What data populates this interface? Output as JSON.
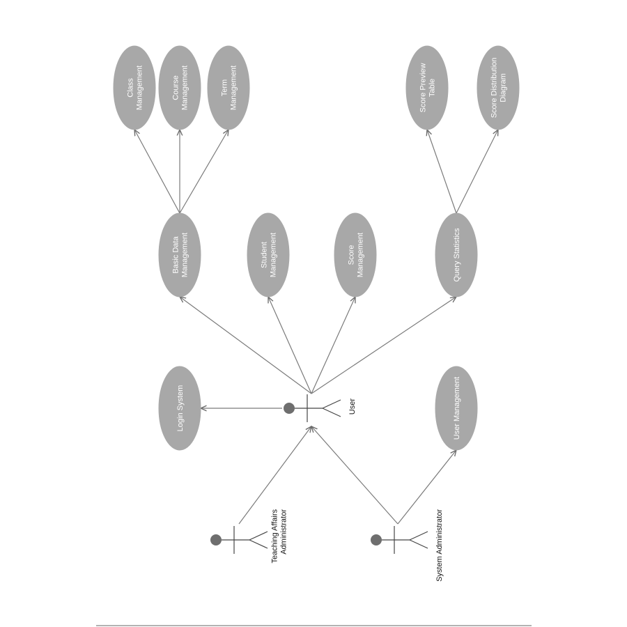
{
  "use_cases": {
    "class_management": [
      "Class",
      "Management"
    ],
    "course_management": [
      "Course",
      "Management"
    ],
    "term_management": [
      "Term",
      "Management"
    ],
    "score_preview_table": [
      "Score Preview",
      "Table"
    ],
    "score_distribution_diagram": [
      "Score Distribution",
      "Diagram"
    ],
    "basic_data_management": [
      "Basic Data",
      "Management"
    ],
    "student_management": [
      "Student",
      "Management"
    ],
    "score_management": [
      "Score",
      "Management"
    ],
    "query_statistics": [
      "Query Statistics"
    ],
    "login_system": [
      "Login System"
    ],
    "user_management": [
      "User Management"
    ]
  },
  "actors": {
    "user": [
      "User"
    ],
    "teaching_affairs_administrator": [
      "Teaching Affairs",
      "Administrator"
    ],
    "system_administrator": [
      "System Administrator"
    ]
  },
  "edges": [
    [
      "basic_data_management",
      "class_management"
    ],
    [
      "basic_data_management",
      "course_management"
    ],
    [
      "basic_data_management",
      "term_management"
    ],
    [
      "query_statistics",
      "score_preview_table"
    ],
    [
      "query_statistics",
      "score_distribution_diagram"
    ],
    [
      "user",
      "basic_data_management"
    ],
    [
      "user",
      "student_management"
    ],
    [
      "user",
      "score_management"
    ],
    [
      "user",
      "query_statistics"
    ],
    [
      "user",
      "login_system"
    ],
    [
      "teaching_affairs_administrator",
      "user"
    ],
    [
      "system_administrator",
      "user"
    ],
    [
      "system_administrator",
      "user_management"
    ]
  ]
}
